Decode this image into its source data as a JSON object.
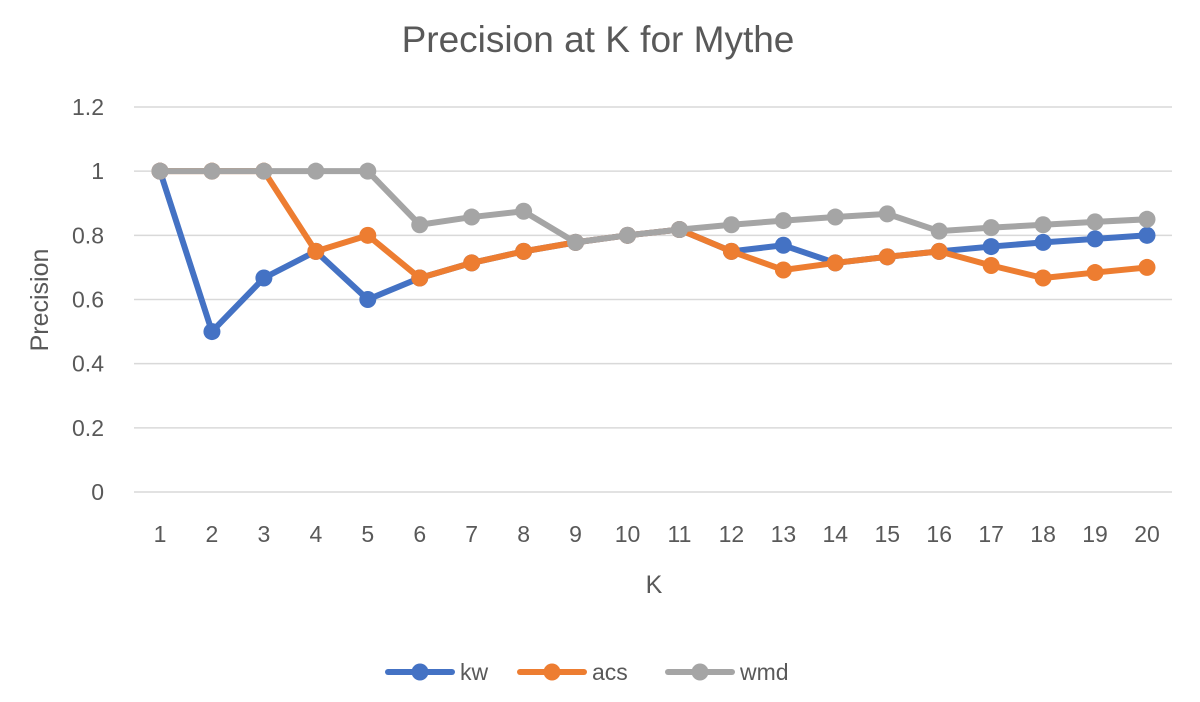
{
  "chart_data": {
    "type": "line",
    "title": "Precision at K for Mythe",
    "xlabel": "K",
    "ylabel": "Precision",
    "x": [
      1,
      2,
      3,
      4,
      5,
      6,
      7,
      8,
      9,
      10,
      11,
      12,
      13,
      14,
      15,
      16,
      17,
      18,
      19,
      20
    ],
    "ylim": [
      0,
      1.2
    ],
    "yticks": [
      0,
      0.2,
      0.4,
      0.6,
      0.8,
      1,
      1.2
    ],
    "ytick_labels": [
      "0",
      "0.2",
      "0.4",
      "0.6",
      "0.8",
      "1",
      "1.2"
    ],
    "grid": true,
    "legend_position": "bottom",
    "series": [
      {
        "name": "kw",
        "color": "#4472C4",
        "values": [
          1,
          0.5,
          0.667,
          0.75,
          0.6,
          0.667,
          0.714,
          0.75,
          0.778,
          0.8,
          0.818,
          0.75,
          0.769,
          0.714,
          0.733,
          0.75,
          0.765,
          0.778,
          0.789,
          0.8
        ]
      },
      {
        "name": "acs",
        "color": "#ED7D31",
        "values": [
          1,
          1,
          1,
          0.75,
          0.8,
          0.667,
          0.714,
          0.75,
          0.778,
          0.8,
          0.818,
          0.75,
          0.692,
          0.714,
          0.733,
          0.75,
          0.706,
          0.667,
          0.684,
          0.7
        ]
      },
      {
        "name": "wmd",
        "color": "#A5A5A5",
        "values": [
          1,
          1,
          1,
          1,
          1,
          0.833,
          0.857,
          0.875,
          0.778,
          0.8,
          0.818,
          0.833,
          0.846,
          0.857,
          0.867,
          0.813,
          0.824,
          0.833,
          0.842,
          0.85
        ]
      }
    ]
  }
}
